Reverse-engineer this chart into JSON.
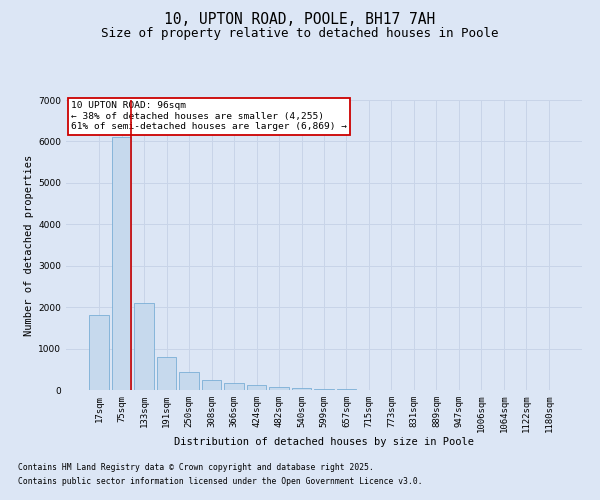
{
  "title1": "10, UPTON ROAD, POOLE, BH17 7AH",
  "title2": "Size of property relative to detached houses in Poole",
  "xlabel": "Distribution of detached houses by size in Poole",
  "ylabel": "Number of detached properties",
  "categories": [
    "17sqm",
    "75sqm",
    "133sqm",
    "191sqm",
    "250sqm",
    "308sqm",
    "366sqm",
    "424sqm",
    "482sqm",
    "540sqm",
    "599sqm",
    "657sqm",
    "715sqm",
    "773sqm",
    "831sqm",
    "889sqm",
    "947sqm",
    "1006sqm",
    "1064sqm",
    "1122sqm",
    "1180sqm"
  ],
  "values": [
    1800,
    6100,
    2100,
    800,
    430,
    250,
    170,
    110,
    70,
    50,
    30,
    15,
    10,
    5,
    3,
    2,
    1,
    1,
    1,
    1,
    0
  ],
  "bar_color": "#c6d9ed",
  "bar_edge_color": "#7aaed6",
  "bar_width": 0.85,
  "vline_color": "#cc0000",
  "vline_x": 1.42,
  "ylim": [
    0,
    7000
  ],
  "yticks": [
    0,
    1000,
    2000,
    3000,
    4000,
    5000,
    6000,
    7000
  ],
  "annotation_text": "10 UPTON ROAD: 96sqm\n← 38% of detached houses are smaller (4,255)\n61% of semi-detached houses are larger (6,869) →",
  "annotation_box_facecolor": "#ffffff",
  "annotation_box_edgecolor": "#cc0000",
  "grid_color": "#c8d4e8",
  "background_color": "#dce6f5",
  "footnote1": "Contains HM Land Registry data © Crown copyright and database right 2025.",
  "footnote2": "Contains public sector information licensed under the Open Government Licence v3.0.",
  "title_fontsize": 10.5,
  "subtitle_fontsize": 9,
  "axis_label_fontsize": 7.5,
  "tick_fontsize": 6.5,
  "annot_fontsize": 6.8,
  "footnote_fontsize": 5.8
}
